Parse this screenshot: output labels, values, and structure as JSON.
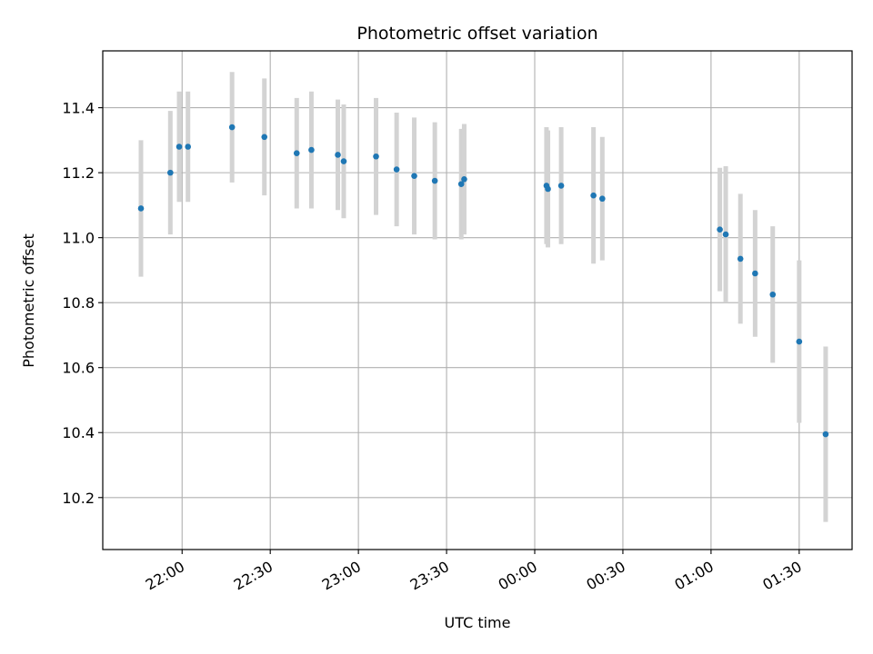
{
  "chart_data": {
    "type": "scatter",
    "title": "Photometric offset variation",
    "xlabel": "UTC time",
    "ylabel": "Photometric offset",
    "x_ticks": [
      "22:00",
      "22:30",
      "23:00",
      "23:30",
      "00:00",
      "00:30",
      "01:00",
      "01:30"
    ],
    "y_ticks": [
      "10.2",
      "10.4",
      "10.6",
      "10.8",
      "11.0",
      "11.2",
      "11.4"
    ],
    "xlim": [
      "2023-01-01T21:33:00",
      "2023-01-02T01:48:00"
    ],
    "ylim": [
      10.04,
      11.575
    ],
    "grid": true,
    "point_color": "#1f77b4",
    "errorbar_color": "#d3d3d3",
    "points": [
      {
        "t": "2023-01-01T21:46:00",
        "y": 11.09,
        "err": 0.21
      },
      {
        "t": "2023-01-01T21:56:00",
        "y": 11.2,
        "err": 0.19
      },
      {
        "t": "2023-01-01T21:59:00",
        "y": 11.28,
        "err": 0.17
      },
      {
        "t": "2023-01-01T22:02:00",
        "y": 11.28,
        "err": 0.17
      },
      {
        "t": "2023-01-01T22:17:00",
        "y": 11.34,
        "err": 0.17
      },
      {
        "t": "2023-01-01T22:28:00",
        "y": 11.31,
        "err": 0.18
      },
      {
        "t": "2023-01-01T22:39:00",
        "y": 11.26,
        "err": 0.17
      },
      {
        "t": "2023-01-01T22:44:00",
        "y": 11.27,
        "err": 0.18
      },
      {
        "t": "2023-01-01T22:53:00",
        "y": 11.255,
        "err": 0.17
      },
      {
        "t": "2023-01-01T22:55:00",
        "y": 11.235,
        "err": 0.175
      },
      {
        "t": "2023-01-01T23:06:00",
        "y": 11.25,
        "err": 0.18
      },
      {
        "t": "2023-01-01T23:13:00",
        "y": 11.21,
        "err": 0.175
      },
      {
        "t": "2023-01-01T23:19:00",
        "y": 11.19,
        "err": 0.18
      },
      {
        "t": "2023-01-01T23:26:00",
        "y": 11.175,
        "err": 0.18
      },
      {
        "t": "2023-01-01T23:35:00",
        "y": 11.165,
        "err": 0.17
      },
      {
        "t": "2023-01-01T23:36:00",
        "y": 11.18,
        "err": 0.17
      },
      {
        "t": "2023-01-02T00:04:00",
        "y": 11.16,
        "err": 0.18
      },
      {
        "t": "2023-01-02T00:04:30",
        "y": 11.15,
        "err": 0.18
      },
      {
        "t": "2023-01-02T00:09:00",
        "y": 11.16,
        "err": 0.18
      },
      {
        "t": "2023-01-02T00:20:00",
        "y": 11.13,
        "err": 0.21
      },
      {
        "t": "2023-01-02T00:23:00",
        "y": 11.12,
        "err": 0.19
      },
      {
        "t": "2023-01-02T01:03:00",
        "y": 11.025,
        "err": 0.19
      },
      {
        "t": "2023-01-02T01:05:00",
        "y": 11.01,
        "err": 0.21
      },
      {
        "t": "2023-01-02T01:10:00",
        "y": 10.935,
        "err": 0.2
      },
      {
        "t": "2023-01-02T01:15:00",
        "y": 10.89,
        "err": 0.195
      },
      {
        "t": "2023-01-02T01:21:00",
        "y": 10.825,
        "err": 0.21
      },
      {
        "t": "2023-01-02T01:30:00",
        "y": 10.68,
        "err": 0.25
      },
      {
        "t": "2023-01-02T01:39:00",
        "y": 10.395,
        "err": 0.27
      }
    ]
  }
}
